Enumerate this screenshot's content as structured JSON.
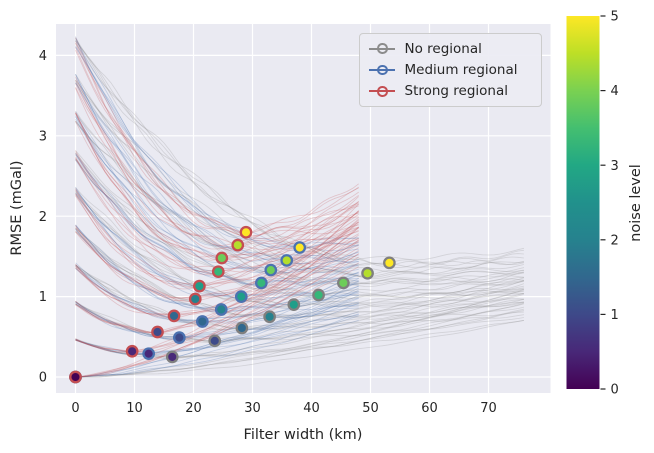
{
  "figure": {
    "background": "#ffffff",
    "axes_background": "#eaeaf2",
    "grid_color": "#ffffff",
    "text_color": "#262626"
  },
  "chart_data": {
    "type": "line",
    "title": "",
    "xlabel": "Filter width (km)",
    "ylabel": "RMSE (mGal)",
    "xticks": [
      0,
      10,
      20,
      30,
      40,
      50,
      60,
      70
    ],
    "yticks": [
      0,
      1,
      2,
      3,
      4
    ],
    "xlim": [
      -3.3,
      80.5
    ],
    "ylim": [
      -0.2,
      4.4
    ],
    "grid": true,
    "legend_position": "upper right",
    "noise_levels": [
      0,
      0.56,
      1.11,
      1.67,
      2.22,
      2.78,
      3.33,
      3.89,
      4.44,
      5
    ],
    "marker_fill_colors": [
      "#440154",
      "#482878",
      "#3e4a89",
      "#31688e",
      "#26828e",
      "#1f9e89",
      "#35b779",
      "#6dcd59",
      "#b4de2c",
      "#fde725"
    ],
    "start_rmse_per_noise_unit": 0.83,
    "ensemble_members_per_noise": 5,
    "series": [
      {
        "name": "No regional",
        "line_color": "#8c8c8c",
        "marker_edge_color": "#7f7f7f",
        "x_end_km": 76.6,
        "end_rmse_range": [
          0.85,
          1.62
        ],
        "minima_filter_width_km": [
          0,
          16.4,
          23.6,
          28.2,
          32.9,
          37.0,
          41.2,
          45.4,
          49.5,
          53.2
        ],
        "minima_rmse_mgal": [
          0,
          0.25,
          0.45,
          0.61,
          0.75,
          0.9,
          1.02,
          1.17,
          1.29,
          1.42
        ],
        "gen": {
          "end_base": 0.93,
          "end_per_noise": 0.05,
          "end_spread": 0.2
        }
      },
      {
        "name": "Medium regional",
        "line_color": "#4c72b0",
        "marker_edge_color": "#4c72b0",
        "x_end_km": 48.8,
        "end_rmse_range": [
          0.87,
          1.73
        ],
        "minima_filter_width_km": [
          0,
          12.4,
          17.6,
          21.5,
          24.7,
          28.1,
          31.5,
          33.1,
          35.8,
          38.0
        ],
        "minima_rmse_mgal": [
          0,
          0.29,
          0.49,
          0.69,
          0.84,
          1.0,
          1.17,
          1.33,
          1.45,
          1.61
        ],
        "gen": {
          "end_base": 0.93,
          "end_per_noise": 0.09,
          "end_spread": 0.22
        }
      },
      {
        "name": "Strong regional",
        "line_color": "#c44e52",
        "marker_edge_color": "#c44e52",
        "x_end_km": 48.8,
        "end_rmse_range": [
          1.73,
          2.4
        ],
        "minima_filter_width_km": [
          0,
          9.6,
          13.9,
          16.7,
          20.3,
          21.0,
          24.2,
          24.8,
          27.5,
          28.9
        ],
        "minima_rmse_mgal": [
          0,
          0.32,
          0.56,
          0.76,
          0.97,
          1.13,
          1.31,
          1.48,
          1.64,
          1.8
        ],
        "gen": {
          "end_base": 1.7,
          "end_per_noise": 0.1,
          "end_spread": 0.26
        }
      }
    ],
    "colorbar": {
      "label": "noise level",
      "vmin": 0,
      "vmax": 5,
      "ticks": [
        0,
        1,
        2,
        3,
        4,
        5
      ],
      "colormap": "viridis",
      "stops": [
        "#440154",
        "#482878",
        "#3e4989",
        "#31688e",
        "#26828e",
        "#21918c",
        "#22a884",
        "#44bf70",
        "#7ad151",
        "#bddf26",
        "#fde725"
      ]
    }
  },
  "legend": {
    "items": [
      {
        "label": "No regional",
        "color": "#8c8c8c"
      },
      {
        "label": "Medium regional",
        "color": "#4c72b0"
      },
      {
        "label": "Strong regional",
        "color": "#c44e52"
      }
    ]
  }
}
